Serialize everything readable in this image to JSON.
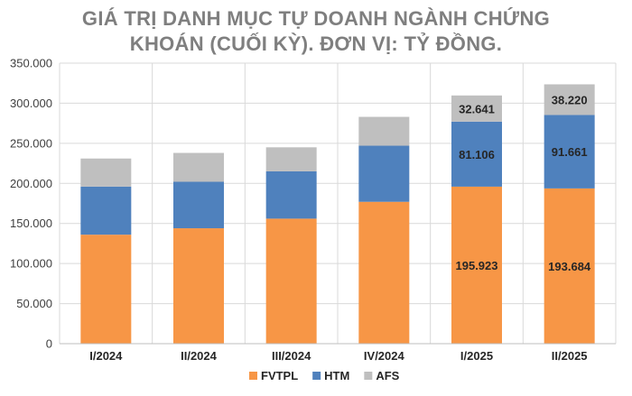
{
  "chart_data": {
    "type": "bar",
    "stacked": true,
    "title_lines": [
      "GIÁ TRỊ DANH MỤC TỰ DOANH NGÀNH CHỨNG",
      "KHOÁN (CUỐI KỲ). ĐƠN VỊ: TỶ ĐỒNG."
    ],
    "xlabel": "",
    "ylabel": "",
    "categories": [
      "I/2024",
      "II/2024",
      "III/2024",
      "IV/2024",
      "I/2025",
      "II/2025"
    ],
    "series": [
      {
        "name": "FVTPL",
        "color": "#f79646",
        "values": [
          136000,
          144000,
          156000,
          177000,
          195923,
          193684
        ]
      },
      {
        "name": "HTM",
        "color": "#4f81bd",
        "values": [
          60000,
          58000,
          59000,
          70000,
          81106,
          91661
        ]
      },
      {
        "name": "AFS",
        "color": "#bfbfbf",
        "values": [
          35000,
          36000,
          30000,
          36000,
          32641,
          38220
        ]
      }
    ],
    "data_labels": [
      {
        "category_index": 4,
        "series_index": 0,
        "text": "195.923"
      },
      {
        "category_index": 4,
        "series_index": 1,
        "text": "81.106"
      },
      {
        "category_index": 4,
        "series_index": 2,
        "text": "32.641"
      },
      {
        "category_index": 5,
        "series_index": 0,
        "text": "193.684"
      },
      {
        "category_index": 5,
        "series_index": 1,
        "text": "91.661"
      },
      {
        "category_index": 5,
        "series_index": 2,
        "text": "38.220"
      }
    ],
    "ylim": [
      0,
      350000
    ],
    "yticks": [
      0,
      50000,
      100000,
      150000,
      200000,
      250000,
      300000,
      350000
    ],
    "ytick_labels": [
      "0",
      "50.000",
      "100.000",
      "150.000",
      "200.000",
      "250.000",
      "300.000",
      "350.000"
    ],
    "grid": true,
    "legend_position": "bottom"
  }
}
